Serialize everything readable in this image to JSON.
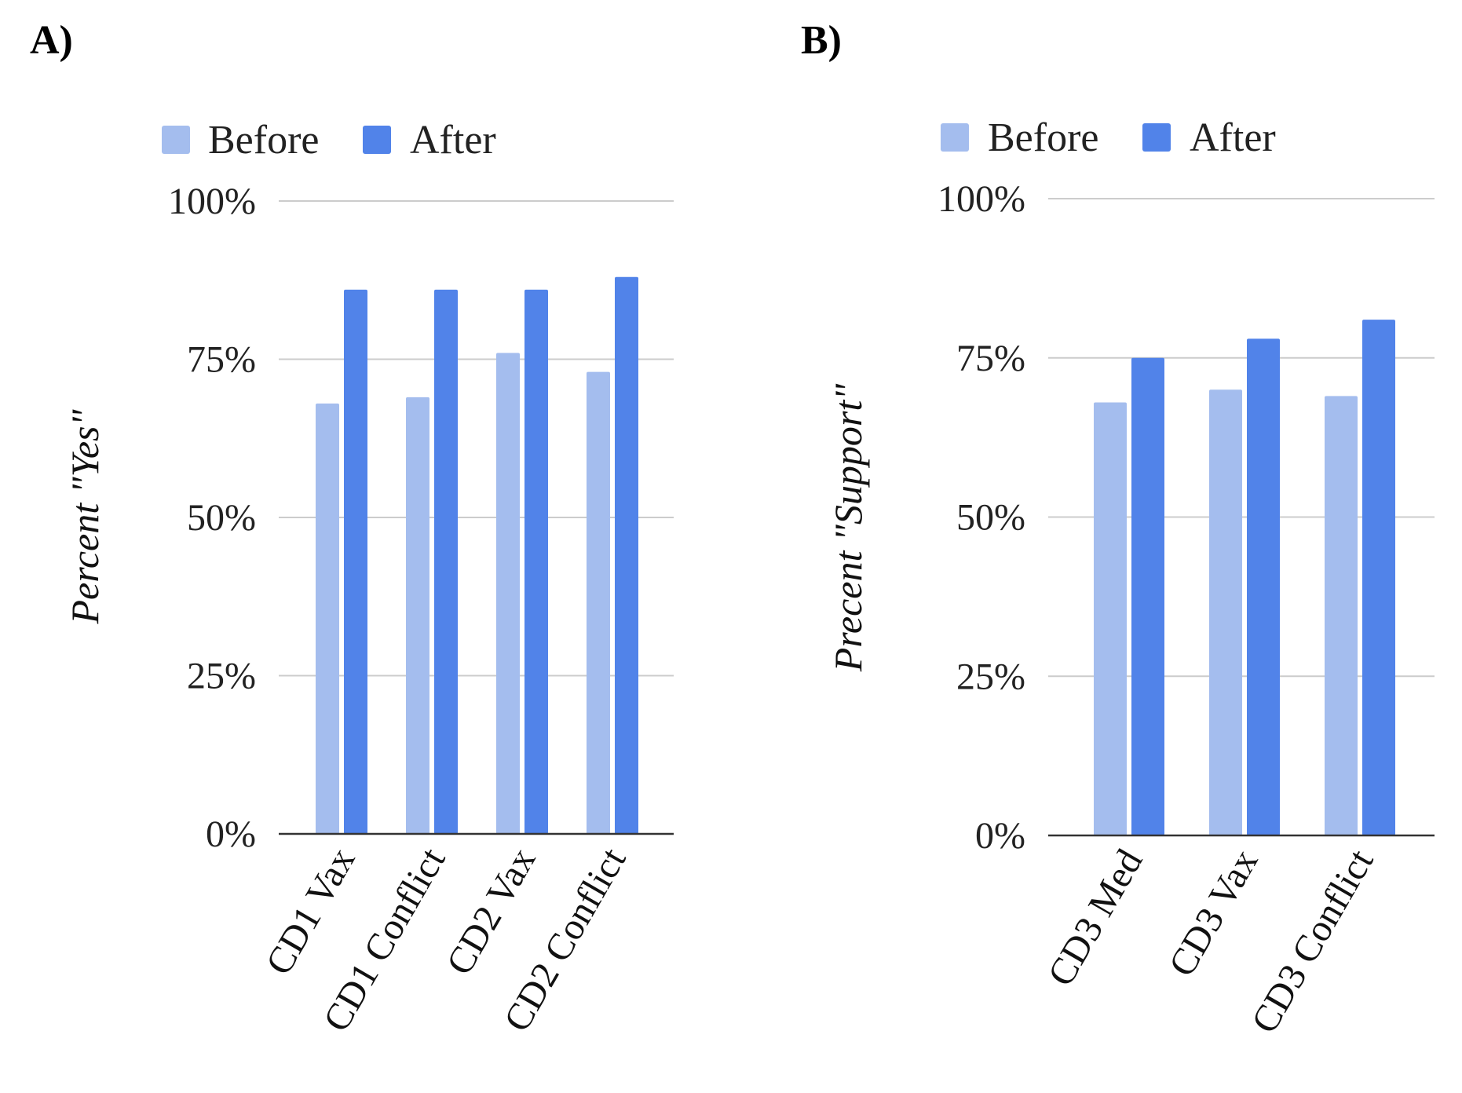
{
  "panels": [
    {
      "label": "A)"
    },
    {
      "label": "B)"
    }
  ],
  "chart_data": [
    {
      "type": "bar",
      "panel_label": "A)",
      "categories": [
        "CD1 Vax",
        "CD1 Conflict",
        "CD2 Vax",
        "CD2 Conflict"
      ],
      "series": [
        {
          "name": "Before",
          "color": "#a4bdee",
          "values": [
            68,
            69,
            76,
            73
          ]
        },
        {
          "name": "After",
          "color": "#5183e9",
          "values": [
            86,
            86,
            86,
            88
          ]
        }
      ],
      "ylabel": "Percent \"Yes\"",
      "xlabel": "",
      "ylim": [
        0,
        100
      ],
      "yticks": [
        0,
        25,
        50,
        75,
        100
      ],
      "ytick_labels": [
        "0%",
        "25%",
        "50%",
        "75%",
        "100%"
      ],
      "grid": true,
      "legend": "top-left"
    },
    {
      "type": "bar",
      "panel_label": "B)",
      "categories": [
        "CD3 Med",
        "CD3 Vax",
        "CD3 Conflict"
      ],
      "series": [
        {
          "name": "Before",
          "color": "#a4bdee",
          "values": [
            68,
            70,
            69
          ]
        },
        {
          "name": "After",
          "color": "#5183e9",
          "values": [
            75,
            78,
            81
          ]
        }
      ],
      "ylabel": "Precent \"Support\"",
      "xlabel": "",
      "ylim": [
        0,
        100
      ],
      "yticks": [
        0,
        25,
        50,
        75,
        100
      ],
      "ytick_labels": [
        "0%",
        "25%",
        "50%",
        "75%",
        "100%"
      ],
      "grid": true,
      "legend": "top-left"
    }
  ]
}
